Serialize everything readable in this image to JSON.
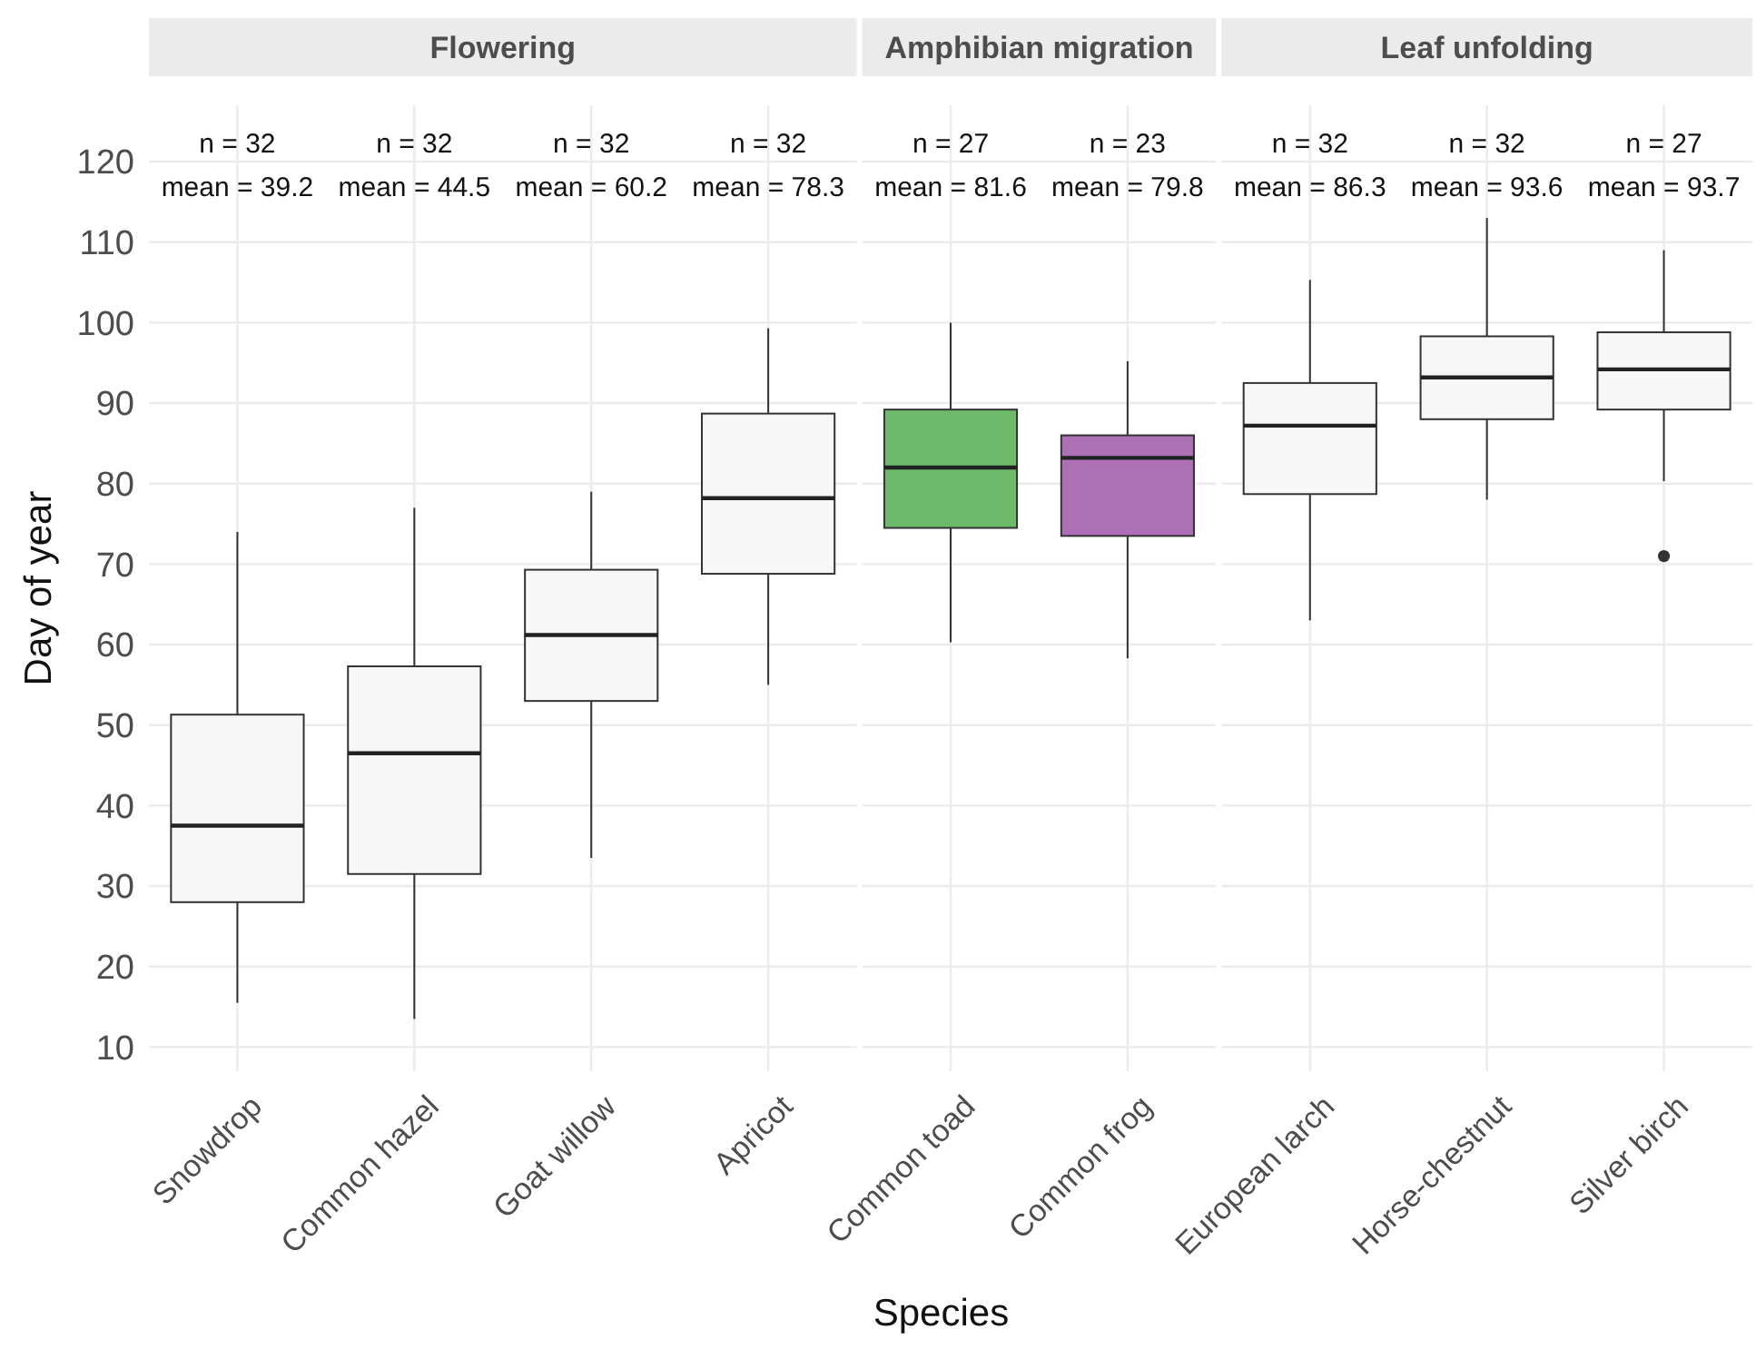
{
  "chart_data": [
    {
      "type": "box",
      "title": "Flowering",
      "ylabel": "Day of year",
      "categories": [
        "Snowdrop",
        "Common hazel",
        "Goat willow",
        "Apricot"
      ],
      "colors": [
        "#f7f7f7",
        "#f7f7f7",
        "#f7f7f7",
        "#f7f7f7"
      ],
      "boxes": [
        {
          "low": 15.5,
          "q1": 28,
          "median": 37.5,
          "q3": 51.3,
          "high": 74
        },
        {
          "low": 13.5,
          "q1": 31.5,
          "median": 46.5,
          "q3": 57.3,
          "high": 77
        },
        {
          "low": 33.5,
          "q1": 53,
          "median": 61.2,
          "q3": 69.3,
          "high": 79
        },
        {
          "low": 55,
          "q1": 68.8,
          "median": 78.2,
          "q3": 88.7,
          "high": 99.3
        }
      ],
      "ylim": [
        7,
        127
      ],
      "yticks": [
        10,
        20,
        30,
        40,
        50,
        60,
        70,
        80,
        90,
        100,
        110,
        120
      ],
      "grid": true,
      "annotations": [
        "n = 32",
        "mean = 39.2",
        "n = 32",
        "mean = 44.5",
        "n = 32",
        "mean = 60.2",
        "n = 32",
        "mean = 78.3"
      ]
    },
    {
      "type": "box",
      "title": "Amphibian migration",
      "xlabel": "Species",
      "categories": [
        "Common toad",
        "Common frog"
      ],
      "colors": [
        "#6dbb6a",
        "#ad70b5"
      ],
      "boxes": [
        {
          "low": 60.3,
          "q1": 74.5,
          "median": 82,
          "q3": 89.2,
          "high": 100
        },
        {
          "low": 58.3,
          "q1": 73.5,
          "median": 83.2,
          "q3": 86,
          "high": 95.2
        }
      ],
      "ylim": [
        7,
        127
      ],
      "yticks": [
        10,
        20,
        30,
        40,
        50,
        60,
        70,
        80,
        90,
        100,
        110,
        120
      ],
      "grid": true,
      "tick_labels": "x",
      "annotations": [
        "n = 27",
        "mean = 81.6",
        "n = 23",
        "mean = 79.8"
      ]
    },
    {
      "type": "box",
      "title": "Leaf unfolding",
      "categories": [
        "European larch",
        "Horse-chestnut",
        "Silver birch"
      ],
      "colors": [
        "#f7f7f7",
        "#f7f7f7",
        "#f7f7f7"
      ],
      "boxes": [
        {
          "low": 63,
          "q1": 78.7,
          "median": 87.2,
          "q3": 92.5,
          "high": 105.3
        },
        {
          "low": 78,
          "q1": 88,
          "median": 93.2,
          "q3": 98.3,
          "high": 113
        },
        {
          "low": 80.3,
          "q1": 89.2,
          "median": 94.2,
          "q3": 98.8,
          "high": 109,
          "outliers": [
            71
          ]
        }
      ],
      "ylim": [
        7,
        127
      ],
      "yticks": [
        10,
        20,
        30,
        40,
        50,
        60,
        70,
        80,
        90,
        100,
        110,
        120
      ],
      "grid": true,
      "tick_labels": "x",
      "annotations": [
        "n = 32",
        "mean = 86.3",
        "n = 32",
        "mean = 93.6",
        "n = 27",
        "mean = 93.7"
      ]
    }
  ]
}
